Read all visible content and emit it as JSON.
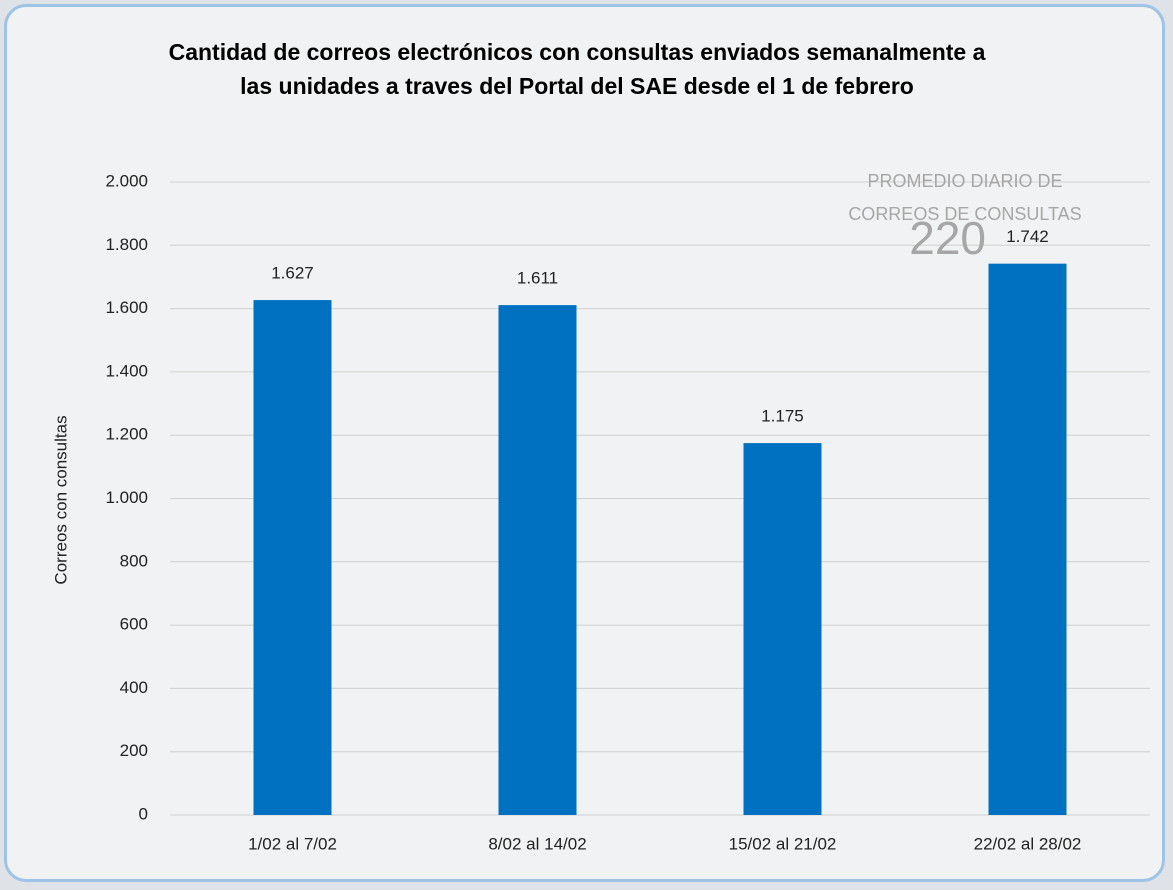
{
  "chart_data": {
    "type": "bar",
    "title": "Cantidad de correos electrónicos con consultas enviados semanalmente a las unidades a traves del Portal del SAE desde el 1 de febrero",
    "y_axis_label": "Correos con consultas",
    "categories": [
      "1/02 al 7/02",
      "8/02 al 14/02",
      "15/02 al 21/02",
      "22/02 al 28/02"
    ],
    "values": [
      1627,
      1611,
      1175,
      1742
    ],
    "value_labels": [
      "1.627",
      "1.611",
      "1.175",
      "1.742"
    ],
    "color": "#0070c0",
    "ylim": [
      0,
      2000
    ],
    "yticks": [
      0,
      200,
      400,
      600,
      800,
      {
        "value": 1000,
        "label": "1.000"
      },
      {
        "value": 1200,
        "label": "1.200"
      },
      {
        "value": 1400,
        "label": "1.400"
      },
      {
        "value": 1600,
        "label": "1.600"
      },
      {
        "value": 1800,
        "label": "1.800"
      },
      {
        "value": 2000,
        "label": "2.000"
      }
    ],
    "grid": true,
    "annotation": {
      "label_lines": [
        "PROMEDIO DIARIO DE",
        "CORREOS DE CONSULTAS"
      ],
      "value": 220
    }
  }
}
